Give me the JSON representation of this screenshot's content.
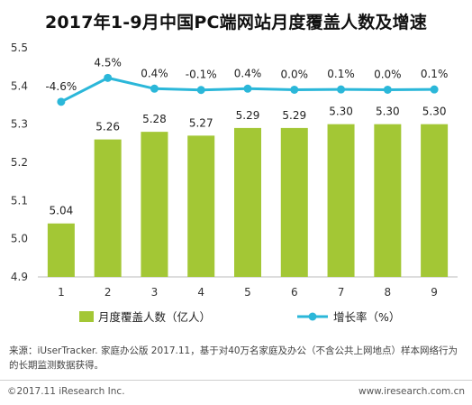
{
  "chart_data": {
    "type": "bar+line",
    "title": "2017年1-9月中国PC端网站月度覆盖人数及增速",
    "categories": [
      "1",
      "2",
      "3",
      "4",
      "5",
      "6",
      "7",
      "8",
      "9"
    ],
    "series": [
      {
        "name": "月度覆盖人数（亿人）",
        "type": "bar",
        "color": "#a3c735",
        "values": [
          5.04,
          5.26,
          5.28,
          5.27,
          5.29,
          5.29,
          5.3,
          5.3,
          5.3
        ],
        "labels": [
          "5.04",
          "5.26",
          "5.28",
          "5.27",
          "5.29",
          "5.29",
          "5.30",
          "5.30",
          "5.30"
        ]
      },
      {
        "name": "增长率（%）",
        "type": "line",
        "color": "#2bb7d9",
        "values": [
          -4.6,
          4.5,
          0.4,
          -0.1,
          0.4,
          0.0,
          0.1,
          0.0,
          0.1
        ],
        "labels": [
          "-4.6%",
          "4.5%",
          "0.4%",
          "-0.1%",
          "0.4%",
          "0.0%",
          "0.1%",
          "0.0%",
          "0.1%"
        ]
      }
    ],
    "y_ticks": [
      "4.9",
      "5.0",
      "5.1",
      "5.2",
      "5.3",
      "5.4",
      "5.5"
    ],
    "ylim": [
      4.9,
      5.5
    ],
    "grid": false,
    "legend": "bottom"
  },
  "source": "来源：iUserTracker. 家庭办公版 2017.11，基于对40万名家庭及办公（不含公共上网地点）样本网络行为的长期监测数据获得。",
  "footer": {
    "copyright": "©2017.11 iResearch Inc.",
    "website": "www.iresearch.com.cn"
  }
}
